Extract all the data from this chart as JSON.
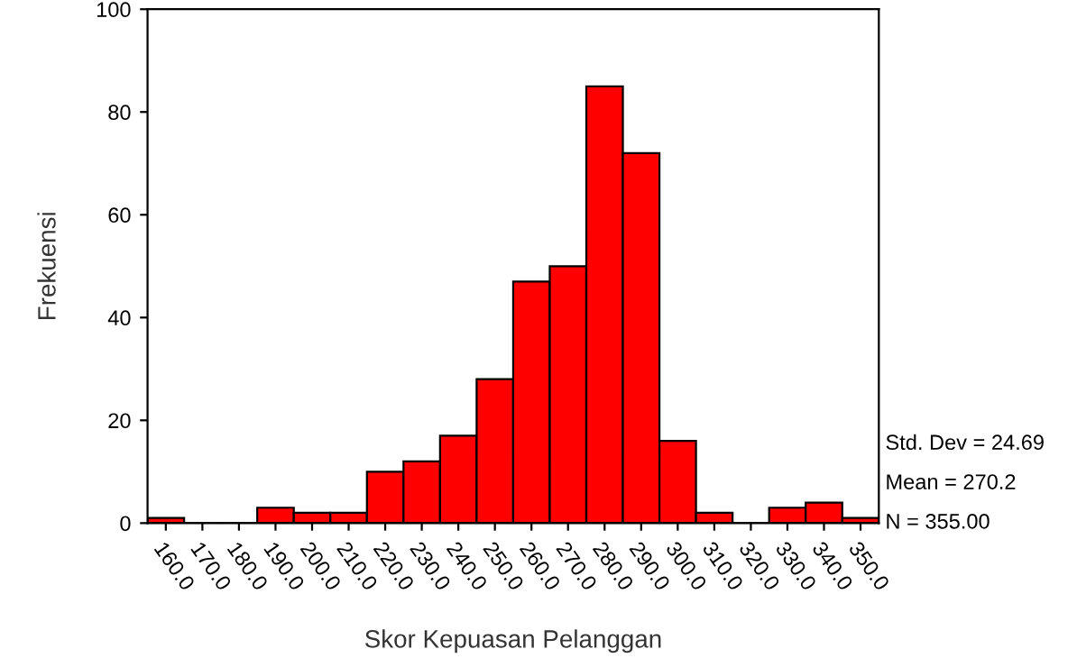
{
  "chart_data": {
    "type": "histogram",
    "xlabel": "Skor Kepuasan Pelanggan",
    "ylabel": "Frekuensi",
    "bins": [
      155,
      165,
      175,
      185,
      195,
      205,
      215,
      225,
      235,
      245,
      255,
      265,
      275,
      285,
      295,
      305,
      315,
      325,
      335,
      345,
      355
    ],
    "values": [
      1,
      0,
      0,
      3,
      2,
      2,
      10,
      12,
      17,
      28,
      47,
      50,
      85,
      72,
      16,
      2,
      0,
      3,
      4,
      1
    ],
    "color": "#ff0000",
    "xlim": [
      155,
      355
    ],
    "xticks": [
      {
        "value": 160,
        "label": "160.0"
      },
      {
        "value": 170,
        "label": "170.0"
      },
      {
        "value": 180,
        "label": "180.0"
      },
      {
        "value": 190,
        "label": "190.0"
      },
      {
        "value": 200,
        "label": "200.0"
      },
      {
        "value": 210,
        "label": "210.0"
      },
      {
        "value": 220,
        "label": "220.0"
      },
      {
        "value": 230,
        "label": "230.0"
      },
      {
        "value": 240,
        "label": "240.0"
      },
      {
        "value": 250,
        "label": "250.0"
      },
      {
        "value": 260,
        "label": "260.0"
      },
      {
        "value": 270,
        "label": "270.0"
      },
      {
        "value": 280,
        "label": "280.0"
      },
      {
        "value": 290,
        "label": "290.0"
      },
      {
        "value": 300,
        "label": "300.0"
      },
      {
        "value": 310,
        "label": "310.0"
      },
      {
        "value": 320,
        "label": "320.0"
      },
      {
        "value": 330,
        "label": "330.0"
      },
      {
        "value": 340,
        "label": "340.0"
      },
      {
        "value": 350,
        "label": "350.0"
      }
    ],
    "ylim": [
      0,
      100
    ],
    "yticks": [
      0,
      20,
      40,
      60,
      80,
      100
    ],
    "annotations": [
      "Std. Dev = 24.69",
      "Mean = 270.2",
      "N = 355.00"
    ],
    "grid": false
  }
}
